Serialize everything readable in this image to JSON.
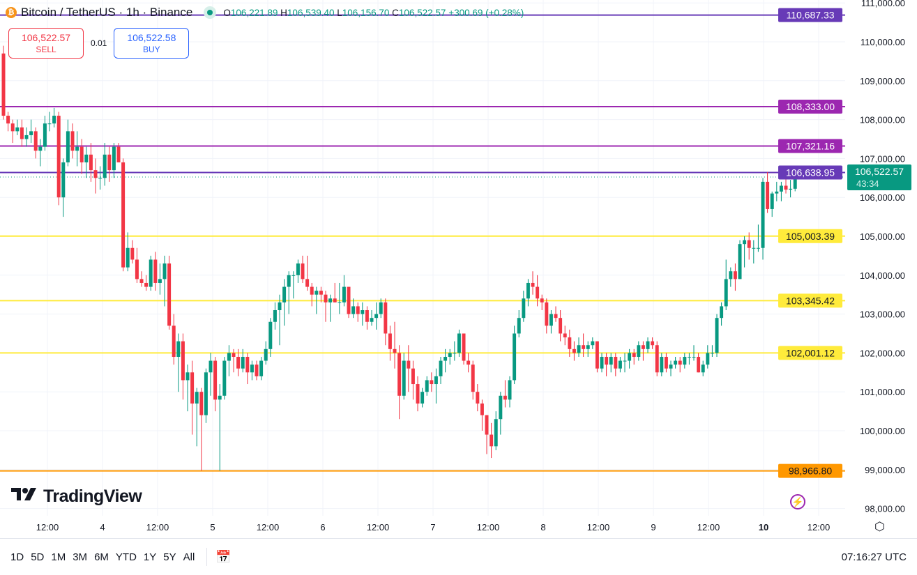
{
  "header": {
    "symbol": "Bitcoin / TetherUS · 1h · Binance",
    "coin_icon": "bitcoin-icon",
    "o_label": "O",
    "o": "106,221.89",
    "h_label": "H",
    "h": "106,539.40",
    "l_label": "L",
    "l": "106,156.70",
    "c_label": "C",
    "c": "106,522.57",
    "change": "+300.69 (+0.28%)"
  },
  "trade": {
    "sell_price": "106,522.57",
    "sell_label": "SELL",
    "spread": "0.01",
    "buy_price": "106,522.58",
    "buy_label": "BUY"
  },
  "logo": "TradingView",
  "bottom": {
    "ranges": [
      "1D",
      "5D",
      "1M",
      "3M",
      "6M",
      "YTD",
      "1Y",
      "5Y",
      "All"
    ],
    "clock": "07:16:27 UTC"
  },
  "colors": {
    "up": "#089981",
    "down": "#f23645",
    "grid": "#f0f3fa"
  },
  "chart_data": {
    "type": "candlestick",
    "interval": "1h",
    "ylim": [
      97600,
      111100
    ],
    "grid": true,
    "y_ticks": [
      "111,000.00",
      "110,000.00",
      "109,000.00",
      "108,000.00",
      "107,000.00",
      "106,000.00",
      "105,000.00",
      "104,000.00",
      "103,000.00",
      "102,000.00",
      "101,000.00",
      "100,000.00",
      "99,000.00",
      "98,000.00"
    ],
    "y_tick_values": [
      111000,
      110000,
      109000,
      108000,
      107000,
      106000,
      105000,
      104000,
      103000,
      102000,
      101000,
      100000,
      99000,
      98000
    ],
    "x_ticks": [
      "12:00",
      "4",
      "12:00",
      "5",
      "12:00",
      "6",
      "12:00",
      "7",
      "12:00",
      "8",
      "12:00",
      "9",
      "12:00",
      "10",
      "12:00"
    ],
    "current_price": {
      "value": 106522.57,
      "label": "106,522.57",
      "countdown": "43:34",
      "color": "#089981"
    },
    "levels": [
      {
        "value": 110687.33,
        "label": "110,687.33",
        "color": "#673ab7"
      },
      {
        "value": 108333.0,
        "label": "108,333.00",
        "color": "#9c27b0"
      },
      {
        "value": 107321.16,
        "label": "107,321.16",
        "color": "#9c27b0"
      },
      {
        "value": 106638.95,
        "label": "106,638.95",
        "color": "#673ab7"
      },
      {
        "value": 105003.39,
        "label": "105,003.39",
        "color": "#ffeb3b"
      },
      {
        "value": 103345.42,
        "label": "103,345.42",
        "color": "#ffeb3b"
      },
      {
        "value": 102001.12,
        "label": "102,001.12",
        "color": "#ffeb3b"
      },
      {
        "value": 98966.8,
        "label": "98,966.80",
        "color": "#ff9800"
      }
    ],
    "ohlc": [
      [
        109700,
        109900,
        108000,
        108100
      ],
      [
        108100,
        108200,
        107700,
        107900
      ],
      [
        107900,
        108000,
        107400,
        107700
      ],
      [
        107700,
        108000,
        107600,
        107800
      ],
      [
        107800,
        108000,
        107300,
        107500
      ],
      [
        107500,
        107800,
        107300,
        107600
      ],
      [
        107600,
        108000,
        107400,
        107700
      ],
      [
        107700,
        107800,
        107000,
        107200
      ],
      [
        107200,
        107500,
        106800,
        107300
      ],
      [
        107300,
        108100,
        107200,
        107900
      ],
      [
        107900,
        108200,
        107700,
        107900
      ],
      [
        107900,
        108300,
        107800,
        108100
      ],
      [
        108100,
        108200,
        105800,
        106000
      ],
      [
        106000,
        107000,
        105500,
        106900
      ],
      [
        106900,
        108000,
        106800,
        107700
      ],
      [
        107700,
        107900,
        107000,
        107200
      ],
      [
        107200,
        107700,
        106800,
        107300
      ],
      [
        107300,
        107500,
        106600,
        106900
      ],
      [
        106900,
        107300,
        106500,
        107100
      ],
      [
        107100,
        107400,
        106400,
        106700
      ],
      [
        106700,
        107000,
        106100,
        106500
      ],
      [
        106500,
        106800,
        106200,
        106500
      ],
      [
        106500,
        107400,
        106300,
        107100
      ],
      [
        107100,
        107300,
        106400,
        106700
      ],
      [
        106700,
        107400,
        106500,
        107300
      ],
      [
        107300,
        107400,
        106900,
        106900
      ],
      [
        106900,
        107000,
        104100,
        104200
      ],
      [
        104200,
        105100,
        104100,
        104700
      ],
      [
        104700,
        104900,
        104300,
        104400
      ],
      [
        104400,
        104700,
        103800,
        103900
      ],
      [
        103900,
        104100,
        103700,
        103800
      ],
      [
        103800,
        104000,
        103600,
        103700
      ],
      [
        103700,
        104500,
        103600,
        104400
      ],
      [
        104400,
        104600,
        103600,
        103800
      ],
      [
        103800,
        104300,
        103500,
        103900
      ],
      [
        103900,
        104500,
        103200,
        104300
      ],
      [
        104300,
        104500,
        102600,
        102700
      ],
      [
        102700,
        103000,
        101700,
        101900
      ],
      [
        101900,
        102500,
        101000,
        102300
      ],
      [
        102300,
        102500,
        100800,
        101300
      ],
      [
        101300,
        101700,
        100500,
        101500
      ],
      [
        101500,
        101800,
        99900,
        100700
      ],
      [
        100700,
        101100,
        99600,
        101000
      ],
      [
        101000,
        101100,
        98970,
        100400
      ],
      [
        100400,
        101600,
        100200,
        101500
      ],
      [
        101500,
        102000,
        100900,
        101800
      ],
      [
        101800,
        101900,
        100500,
        100800
      ],
      [
        100800,
        101200,
        98970,
        100900
      ],
      [
        100900,
        101900,
        100800,
        101800
      ],
      [
        101800,
        102200,
        101400,
        102000
      ],
      [
        102000,
        102100,
        101500,
        101900
      ],
      [
        101900,
        102100,
        101400,
        101600
      ],
      [
        101600,
        102100,
        101500,
        101900
      ],
      [
        101900,
        102000,
        101200,
        101500
      ],
      [
        101500,
        101800,
        101300,
        101700
      ],
      [
        101700,
        101800,
        101300,
        101400
      ],
      [
        101400,
        101900,
        101300,
        101800
      ],
      [
        101800,
        102300,
        101700,
        102100
      ],
      [
        102100,
        102900,
        101900,
        102800
      ],
      [
        102800,
        103300,
        102600,
        103100
      ],
      [
        103100,
        103500,
        102200,
        103300
      ],
      [
        103300,
        103900,
        102700,
        103700
      ],
      [
        103700,
        104100,
        103000,
        104000
      ],
      [
        104000,
        104100,
        103400,
        104000
      ],
      [
        104000,
        104400,
        103800,
        104300
      ],
      [
        104300,
        104500,
        103800,
        103900
      ],
      [
        103900,
        104500,
        103600,
        103700
      ],
      [
        103700,
        103800,
        103200,
        103500
      ],
      [
        103500,
        103700,
        103000,
        103600
      ],
      [
        103600,
        103700,
        103300,
        103500
      ],
      [
        103500,
        103600,
        102800,
        103300
      ],
      [
        103300,
        103500,
        102800,
        103400
      ],
      [
        103400,
        103800,
        103300,
        103300
      ],
      [
        103300,
        103800,
        103000,
        103300
      ],
      [
        103300,
        104000,
        103200,
        103700
      ],
      [
        103700,
        103700,
        102900,
        103000
      ],
      [
        103000,
        103400,
        102900,
        103200
      ],
      [
        103200,
        103300,
        102800,
        103000
      ],
      [
        103000,
        103300,
        102700,
        103100
      ],
      [
        103100,
        103200,
        102600,
        102800
      ],
      [
        102800,
        103100,
        102700,
        102900
      ],
      [
        102900,
        103300,
        102600,
        103000
      ],
      [
        103000,
        103400,
        102900,
        103300
      ],
      [
        103300,
        103400,
        102200,
        102500
      ],
      [
        102500,
        102700,
        101800,
        102100
      ],
      [
        102100,
        102800,
        101600,
        102000
      ],
      [
        102000,
        102200,
        100300,
        100900
      ],
      [
        100900,
        102000,
        100800,
        101800
      ],
      [
        101800,
        102200,
        101000,
        101600
      ],
      [
        101600,
        101800,
        100800,
        101200
      ],
      [
        101200,
        101400,
        100500,
        100700
      ],
      [
        100700,
        101100,
        100600,
        101000
      ],
      [
        101000,
        101400,
        100900,
        101300
      ],
      [
        101300,
        101500,
        101000,
        101200
      ],
      [
        101200,
        101600,
        100700,
        101400
      ],
      [
        101400,
        101900,
        101200,
        101800
      ],
      [
        101800,
        102100,
        101500,
        101900
      ],
      [
        101900,
        102100,
        101700,
        102000
      ],
      [
        102000,
        102300,
        101800,
        102000
      ],
      [
        102000,
        102600,
        101900,
        102500
      ],
      [
        102500,
        102500,
        101700,
        101800
      ],
      [
        101800,
        102000,
        101500,
        101700
      ],
      [
        101700,
        101800,
        100800,
        101000
      ],
      [
        101000,
        101200,
        100500,
        100700
      ],
      [
        100700,
        100800,
        100000,
        100400
      ],
      [
        100400,
        100400,
        99400,
        99900
      ],
      [
        99900,
        100200,
        99300,
        99600
      ],
      [
        99600,
        100500,
        99500,
        100300
      ],
      [
        100300,
        101000,
        99900,
        100900
      ],
      [
        100900,
        101300,
        100600,
        100800
      ],
      [
        100800,
        101400,
        100600,
        101300
      ],
      [
        101300,
        102700,
        101200,
        102500
      ],
      [
        102500,
        103100,
        102400,
        102900
      ],
      [
        102900,
        103600,
        102800,
        103400
      ],
      [
        103400,
        103900,
        103200,
        103800
      ],
      [
        103800,
        104100,
        103500,
        103700
      ],
      [
        103700,
        104000,
        103200,
        103400
      ],
      [
        103400,
        103500,
        103100,
        103300
      ],
      [
        103300,
        103400,
        102500,
        102700
      ],
      [
        102700,
        103100,
        102500,
        103000
      ],
      [
        103000,
        103200,
        102800,
        102900
      ],
      [
        102900,
        103100,
        102300,
        102500
      ],
      [
        102500,
        102700,
        102200,
        102400
      ],
      [
        102400,
        102600,
        101900,
        102100
      ],
      [
        102100,
        102300,
        101800,
        102000
      ],
      [
        102000,
        102400,
        101900,
        102200
      ],
      [
        102200,
        102500,
        101900,
        102100
      ],
      [
        102100,
        102300,
        101900,
        102200
      ],
      [
        102200,
        102400,
        102100,
        102300
      ],
      [
        102300,
        102300,
        101500,
        101600
      ],
      [
        101600,
        102000,
        101500,
        101900
      ],
      [
        101900,
        102000,
        101400,
        101700
      ],
      [
        101700,
        102000,
        101500,
        101900
      ],
      [
        101900,
        102000,
        101400,
        101600
      ],
      [
        101600,
        101900,
        101500,
        101800
      ],
      [
        101800,
        102000,
        101500,
        101800
      ],
      [
        101800,
        102100,
        101600,
        102000
      ],
      [
        102000,
        102100,
        101700,
        101900
      ],
      [
        101900,
        102300,
        101800,
        102200
      ],
      [
        102200,
        102300,
        101800,
        102100
      ],
      [
        102100,
        102400,
        102000,
        102300
      ],
      [
        102300,
        102400,
        102100,
        102200
      ],
      [
        102200,
        102300,
        101400,
        101500
      ],
      [
        101500,
        102000,
        101400,
        101900
      ],
      [
        101900,
        102000,
        101500,
        101600
      ],
      [
        101600,
        101800,
        101400,
        101700
      ],
      [
        101700,
        101900,
        101600,
        101800
      ],
      [
        101800,
        101900,
        101500,
        101700
      ],
      [
        101700,
        102000,
        101600,
        101900
      ],
      [
        101900,
        102000,
        101700,
        101900
      ],
      [
        101900,
        102200,
        101800,
        101900
      ],
      [
        101900,
        102000,
        101500,
        101500
      ],
      [
        101500,
        101800,
        101400,
        101700
      ],
      [
        101700,
        102200,
        101600,
        102000
      ],
      [
        102000,
        102200,
        101900,
        102000
      ],
      [
        102000,
        103000,
        101900,
        102900
      ],
      [
        102900,
        103300,
        102700,
        103200
      ],
      [
        103200,
        104400,
        103100,
        103900
      ],
      [
        103900,
        104200,
        103700,
        104100
      ],
      [
        104100,
        104300,
        103600,
        103900
      ],
      [
        103900,
        104900,
        103900,
        104800
      ],
      [
        104800,
        105000,
        104200,
        104900
      ],
      [
        104900,
        105100,
        104400,
        104700
      ],
      [
        104700,
        104900,
        104300,
        104700
      ],
      [
        104700,
        105300,
        104600,
        104700
      ],
      [
        104700,
        106500,
        104400,
        106400
      ],
      [
        106400,
        106650,
        105600,
        105700
      ],
      [
        105700,
        106150,
        105500,
        106100
      ],
      [
        106100,
        106400,
        105900,
        106150
      ],
      [
        106150,
        106400,
        105900,
        106300
      ],
      [
        106300,
        106550,
        106100,
        106200
      ],
      [
        106200,
        106450,
        106000,
        106221.89
      ],
      [
        106221.89,
        106539.4,
        106156.7,
        106522.57
      ]
    ]
  }
}
